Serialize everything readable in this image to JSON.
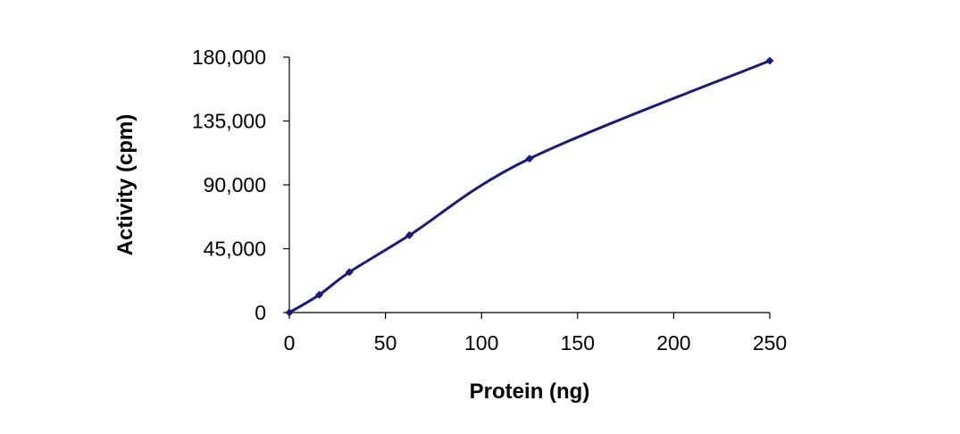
{
  "chart_data": {
    "type": "line",
    "title": "",
    "xlabel": "Protein (ng)",
    "ylabel": "Activity (cpm)",
    "xlim": [
      0,
      250
    ],
    "ylim": [
      0,
      180000
    ],
    "x_ticks": [
      0,
      50,
      100,
      150,
      200,
      250
    ],
    "x_tick_labels": [
      "0",
      "50",
      "100",
      "150",
      "200",
      "250"
    ],
    "y_ticks": [
      0,
      45000,
      90000,
      135000,
      180000
    ],
    "y_tick_labels": [
      "0",
      "45,000",
      "90,000",
      "135,000",
      "180,000"
    ],
    "grid": false,
    "legend": "none",
    "series": [
      {
        "color": "#1a1a7e",
        "x": [
          0,
          15.6,
          31.25,
          62.5,
          125,
          250
        ],
        "y": [
          0,
          12500,
          28500,
          54500,
          108500,
          177500
        ]
      }
    ]
  }
}
